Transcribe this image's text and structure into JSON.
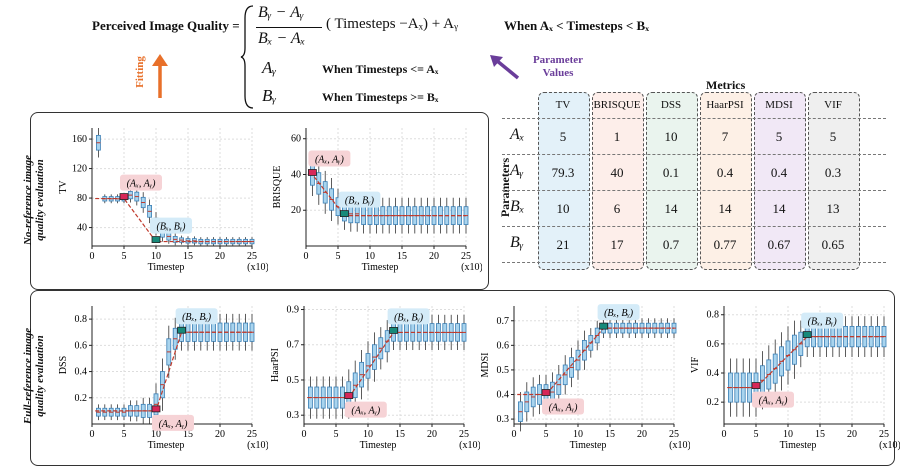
{
  "formula": {
    "lhs": "Perceived Image Quality =",
    "frac_num": "Bᵧ − Aᵧ",
    "frac_den": "Bₓ − Aₓ",
    "case1_mid": "( Timesteps −Aₓ) + Aᵧ",
    "case1_cond": "When Aₓ < Timesteps < Bₓ",
    "case2_val": "Aᵧ",
    "case2_cond": "When Timesteps <= Aₓ",
    "case3_val": "Bᵧ",
    "case3_cond": "When Timesteps >= Bₓ",
    "fitting_label": "Fitting",
    "param_values_label": "Parameter Values",
    "colors": {
      "fitting": "#e8702a",
      "param": "#6a3d9a"
    }
  },
  "table": {
    "title": "Metrics",
    "row_axis_label": "Parameters",
    "columns": [
      "TV",
      "BRISQUE",
      "DSS",
      "HaarPSI",
      "MDSI",
      "VIF"
    ],
    "column_colors": [
      "#e3f1f9",
      "#fdeeea",
      "#eaf4ee",
      "#fdf0e6",
      "#f1e8f6",
      "#efefef"
    ],
    "rows": [
      {
        "param": "Aₓ",
        "values": [
          "5",
          "1",
          "10",
          "7",
          "5",
          "5"
        ]
      },
      {
        "param": "Aᵧ",
        "values": [
          "79.3",
          "40",
          "0.1",
          "0.4",
          "0.4",
          "0.3"
        ]
      },
      {
        "param": "Bₓ",
        "values": [
          "10",
          "6",
          "14",
          "14",
          "14",
          "13"
        ]
      },
      {
        "param": "Bᵧ",
        "values": [
          "21",
          "17",
          "0.7",
          "0.77",
          "0.67",
          "0.65"
        ]
      }
    ]
  },
  "panels": {
    "nr_title_1": "No-reference image",
    "nr_title_2": "quality evaluation",
    "fr_title_1": "Full-reference image",
    "fr_title_2": "quality evaluation"
  },
  "chart_data": [
    {
      "type": "box",
      "ylabel": "TV",
      "xlabel": "Timestep",
      "xunit": "(x10)",
      "xlim": [
        0,
        25
      ],
      "ylim": [
        15,
        175
      ],
      "yticks": [
        40,
        80,
        120,
        160
      ],
      "xticks": [
        0,
        5,
        10,
        15,
        20,
        25
      ],
      "A": {
        "x": 5,
        "y": 79.3,
        "label": "(Aₓ, Aᵧ)"
      },
      "B": {
        "x": 10,
        "y": 21,
        "label": "(Bₓ, Bᵧ)"
      },
      "medians": [
        155,
        79,
        79,
        79,
        79,
        84,
        82,
        74,
        62,
        45,
        33,
        28,
        24,
        23,
        22,
        22,
        21,
        21,
        21,
        21,
        21,
        21,
        21,
        21,
        21
      ],
      "spread": [
        10,
        3,
        3,
        3,
        3,
        5,
        6,
        7,
        8,
        8,
        6,
        5,
        4,
        3,
        3,
        3,
        3,
        3,
        3,
        3,
        3,
        3,
        3,
        3,
        3
      ]
    },
    {
      "type": "box",
      "ylabel": "BRISQUE",
      "xlabel": "Timestep",
      "xunit": "(x10)",
      "xlim": [
        0,
        25
      ],
      "ylim": [
        0,
        66
      ],
      "yticks": [
        20,
        40,
        60
      ],
      "xticks": [
        0,
        5,
        10,
        15,
        20,
        25
      ],
      "A": {
        "x": 1,
        "y": 40,
        "label": "(Aₓ, Aᵧ)"
      },
      "B": {
        "x": 6,
        "y": 17,
        "label": "(Bₓ, Bᵧ)"
      },
      "medians": [
        40,
        35,
        30,
        26,
        22,
        19,
        18,
        18,
        17,
        17,
        17,
        17,
        17,
        17,
        17,
        17,
        17,
        17,
        17,
        17,
        17,
        17,
        17,
        17,
        17
      ],
      "spread": [
        6,
        6,
        6,
        6,
        5,
        5,
        5,
        5,
        5,
        5,
        5,
        5,
        5,
        5,
        5,
        5,
        5,
        5,
        5,
        5,
        5,
        5,
        5,
        5,
        5
      ]
    },
    {
      "type": "box",
      "ylabel": "DSS",
      "xlabel": "Timestep",
      "xunit": "(x10)",
      "xlim": [
        0,
        25
      ],
      "ylim": [
        0.0,
        0.9
      ],
      "yticks": [
        0.2,
        0.4,
        0.6,
        0.8
      ],
      "xticks": [
        0,
        5,
        10,
        15,
        20,
        25
      ],
      "A": {
        "x": 10,
        "y": 0.1,
        "label": "(Aₓ, Aᵧ)"
      },
      "B": {
        "x": 14,
        "y": 0.7,
        "label": "(Bₓ, Bᵧ)"
      },
      "medians": [
        0.09,
        0.09,
        0.09,
        0.09,
        0.09,
        0.1,
        0.1,
        0.1,
        0.1,
        0.15,
        0.3,
        0.55,
        0.65,
        0.7,
        0.7,
        0.7,
        0.7,
        0.7,
        0.7,
        0.7,
        0.7,
        0.7,
        0.7,
        0.7,
        0.7
      ],
      "spread": [
        0.03,
        0.03,
        0.03,
        0.03,
        0.03,
        0.04,
        0.04,
        0.05,
        0.05,
        0.08,
        0.1,
        0.1,
        0.08,
        0.07,
        0.07,
        0.07,
        0.07,
        0.07,
        0.07,
        0.07,
        0.07,
        0.07,
        0.07,
        0.07,
        0.07
      ]
    },
    {
      "type": "box",
      "ylabel": "HaarPSI",
      "xlabel": "Timestep",
      "xunit": "(x10)",
      "xlim": [
        0,
        25
      ],
      "ylim": [
        0.25,
        0.92
      ],
      "yticks": [
        0.3,
        0.5,
        0.7,
        0.9
      ],
      "xticks": [
        0,
        5,
        10,
        15,
        20,
        25
      ],
      "A": {
        "x": 7,
        "y": 0.4,
        "label": "(Aₓ, Aᵧ)"
      },
      "B": {
        "x": 14,
        "y": 0.77,
        "label": "(Bₓ, Bᵧ)"
      },
      "medians": [
        0.4,
        0.4,
        0.4,
        0.4,
        0.4,
        0.4,
        0.42,
        0.47,
        0.53,
        0.58,
        0.63,
        0.68,
        0.72,
        0.77,
        0.77,
        0.77,
        0.77,
        0.77,
        0.77,
        0.77,
        0.77,
        0.77,
        0.77,
        0.77,
        0.77
      ],
      "spread": [
        0.06,
        0.06,
        0.06,
        0.06,
        0.06,
        0.06,
        0.07,
        0.07,
        0.07,
        0.07,
        0.07,
        0.06,
        0.06,
        0.05,
        0.05,
        0.05,
        0.05,
        0.05,
        0.05,
        0.05,
        0.05,
        0.05,
        0.05,
        0.05,
        0.05
      ]
    },
    {
      "type": "box",
      "ylabel": "MDSI",
      "xlabel": "Timestep",
      "xunit": "(x10)",
      "xlim": [
        0,
        25
      ],
      "ylim": [
        0.28,
        0.76
      ],
      "yticks": [
        0.3,
        0.4,
        0.5,
        0.6,
        0.7
      ],
      "xticks": [
        0,
        5,
        10,
        15,
        20,
        25
      ],
      "A": {
        "x": 5,
        "y": 0.4,
        "label": "(Aₓ, Aᵧ)"
      },
      "B": {
        "x": 14,
        "y": 0.67,
        "label": "(Bₓ, Bᵧ)"
      },
      "medians": [
        0.33,
        0.37,
        0.39,
        0.4,
        0.4,
        0.41,
        0.44,
        0.48,
        0.51,
        0.54,
        0.58,
        0.61,
        0.64,
        0.67,
        0.67,
        0.67,
        0.67,
        0.67,
        0.67,
        0.67,
        0.67,
        0.67,
        0.67,
        0.67,
        0.67
      ],
      "spread": [
        0.04,
        0.04,
        0.04,
        0.04,
        0.04,
        0.04,
        0.04,
        0.04,
        0.04,
        0.04,
        0.04,
        0.03,
        0.03,
        0.02,
        0.02,
        0.02,
        0.02,
        0.02,
        0.02,
        0.02,
        0.02,
        0.02,
        0.02,
        0.02,
        0.02
      ]
    },
    {
      "type": "box",
      "ylabel": "VIF",
      "xlabel": "Timestep",
      "xunit": "(x10)",
      "xlim": [
        0,
        25
      ],
      "ylim": [
        0.05,
        0.86
      ],
      "yticks": [
        0.2,
        0.4,
        0.6,
        0.8
      ],
      "xticks": [
        0,
        5,
        10,
        15,
        20,
        25
      ],
      "A": {
        "x": 5,
        "y": 0.3,
        "label": "(Aₓ, Aᵧ)"
      },
      "B": {
        "x": 13,
        "y": 0.65,
        "label": "(Bₓ, Bᵧ)"
      },
      "medians": [
        0.3,
        0.3,
        0.3,
        0.3,
        0.3,
        0.35,
        0.39,
        0.43,
        0.48,
        0.52,
        0.56,
        0.6,
        0.65,
        0.65,
        0.65,
        0.65,
        0.65,
        0.65,
        0.65,
        0.65,
        0.65,
        0.65,
        0.65,
        0.65,
        0.65
      ],
      "spread": [
        0.1,
        0.1,
        0.1,
        0.1,
        0.1,
        0.1,
        0.1,
        0.1,
        0.1,
        0.1,
        0.1,
        0.08,
        0.07,
        0.07,
        0.07,
        0.07,
        0.07,
        0.07,
        0.07,
        0.07,
        0.07,
        0.07,
        0.07,
        0.07,
        0.07
      ]
    }
  ]
}
